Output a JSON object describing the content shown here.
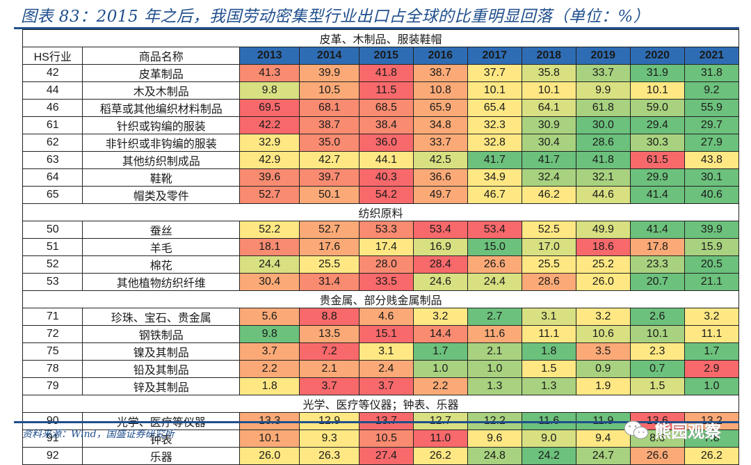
{
  "title": "图表 83：2015 年之后，我国劳动密集型行业出口占全球的比重明显回落（单位：%）",
  "source": "资料来源：Wind，国盛证券研究所",
  "watermark": "熊园观察",
  "header": {
    "hs_label": "HS行业",
    "name_label": "商品名称",
    "years": [
      "2013",
      "2014",
      "2015",
      "2016",
      "2017",
      "2018",
      "2019",
      "2020",
      "2021"
    ]
  },
  "palette": {
    "R": "#F8696B",
    "RO": "#F98B71",
    "O": "#FBAA77",
    "Y": "#FFE884",
    "YG": "#D8E082",
    "LG": "#A8D27F",
    "G": "#6CC17C",
    "header_blue": "#2E6DB4",
    "title_blue": "#1F4E8C"
  },
  "sections": [
    {
      "title": "皮革、木制品、服装鞋帽",
      "rows": [
        {
          "hs": "42",
          "name": "皮革制品",
          "values": [
            "41.3",
            "39.9",
            "41.8",
            "38.7",
            "37.7",
            "35.8",
            "33.7",
            "31.9",
            "31.8"
          ],
          "colors": [
            "RO",
            "O",
            "R",
            "O",
            "Y",
            "YG",
            "LG",
            "G",
            "G"
          ]
        },
        {
          "hs": "44",
          "name": "木及木制品",
          "values": [
            "9.8",
            "10.5",
            "11.5",
            "10.8",
            "10.1",
            "10.1",
            "9.9",
            "10.1",
            "9.2"
          ],
          "colors": [
            "YG",
            "O",
            "R",
            "O",
            "Y",
            "Y",
            "YG",
            "Y",
            "G"
          ]
        },
        {
          "hs": "46",
          "name": "稻草或其他编织材料制品",
          "values": [
            "69.5",
            "68.1",
            "68.5",
            "65.9",
            "65.4",
            "64.1",
            "61.8",
            "59.0",
            "55.9"
          ],
          "colors": [
            "R",
            "RO",
            "RO",
            "O",
            "Y",
            "YG",
            "LG",
            "LG",
            "G"
          ]
        },
        {
          "hs": "61",
          "name": "针织或钩编的服装",
          "values": [
            "42.2",
            "38.7",
            "38.4",
            "34.8",
            "32.3",
            "30.9",
            "30.0",
            "29.4",
            "29.7"
          ],
          "colors": [
            "R",
            "RO",
            "RO",
            "O",
            "Y",
            "LG",
            "G",
            "G",
            "G"
          ]
        },
        {
          "hs": "62",
          "name": "非针织或非钩编的服装",
          "values": [
            "32.9",
            "35.0",
            "36.0",
            "33.7",
            "32.8",
            "30.4",
            "28.6",
            "30.3",
            "27.9"
          ],
          "colors": [
            "Y",
            "RO",
            "R",
            "O",
            "Y",
            "LG",
            "G",
            "LG",
            "G"
          ]
        },
        {
          "hs": "63",
          "name": "其他纺织制成品",
          "values": [
            "42.9",
            "42.7",
            "44.1",
            "42.5",
            "41.7",
            "41.7",
            "41.8",
            "61.5",
            "43.8"
          ],
          "colors": [
            "Y",
            "Y",
            "Y",
            "YG",
            "G",
            "G",
            "G",
            "R",
            "Y"
          ]
        },
        {
          "hs": "64",
          "name": "鞋靴",
          "values": [
            "39.6",
            "39.7",
            "40.3",
            "36.6",
            "34.9",
            "32.4",
            "32.1",
            "29.9",
            "30.1"
          ],
          "colors": [
            "RO",
            "RO",
            "R",
            "O",
            "Y",
            "LG",
            "LG",
            "G",
            "G"
          ]
        },
        {
          "hs": "65",
          "name": "帽类及零件",
          "values": [
            "52.7",
            "50.1",
            "54.2",
            "49.7",
            "46.7",
            "46.2",
            "44.6",
            "41.4",
            "40.6"
          ],
          "colors": [
            "RO",
            "O",
            "R",
            "O",
            "Y",
            "Y",
            "YG",
            "G",
            "G"
          ]
        }
      ]
    },
    {
      "title": "纺织原料",
      "rows": [
        {
          "hs": "50",
          "name": "蚕丝",
          "values": [
            "52.2",
            "52.7",
            "53.3",
            "53.4",
            "53.4",
            "52.5",
            "49.9",
            "41.4",
            "39.9"
          ],
          "colors": [
            "Y",
            "O",
            "RO",
            "R",
            "R",
            "Y",
            "YG",
            "G",
            "G"
          ]
        },
        {
          "hs": "51",
          "name": "羊毛",
          "values": [
            "18.1",
            "17.6",
            "17.4",
            "16.9",
            "15.0",
            "17.0",
            "18.6",
            "17.8",
            "15.9"
          ],
          "colors": [
            "RO",
            "O",
            "Y",
            "YG",
            "G",
            "YG",
            "R",
            "O",
            "LG"
          ]
        },
        {
          "hs": "52",
          "name": "棉花",
          "values": [
            "24.4",
            "25.5",
            "28.0",
            "28.4",
            "26.6",
            "25.5",
            "25.2",
            "23.3",
            "20.5"
          ],
          "colors": [
            "YG",
            "Y",
            "RO",
            "R",
            "O",
            "Y",
            "Y",
            "LG",
            "G"
          ]
        },
        {
          "hs": "53",
          "name": "其他植物纺织纤维",
          "values": [
            "30.4",
            "31.4",
            "33.5",
            "24.6",
            "24.4",
            "28.6",
            "26.0",
            "20.7",
            "21.1"
          ],
          "colors": [
            "O",
            "RO",
            "R",
            "YG",
            "YG",
            "O",
            "Y",
            "G",
            "G"
          ]
        }
      ]
    },
    {
      "title": "贵金属、部分贱金属制品",
      "rows": [
        {
          "hs": "71",
          "name": "珍珠、宝石、贵金属",
          "values": [
            "5.6",
            "8.8",
            "4.6",
            "3.2",
            "2.7",
            "3.1",
            "3.2",
            "2.6",
            "3.2"
          ],
          "colors": [
            "O",
            "R",
            "O",
            "Y",
            "G",
            "YG",
            "Y",
            "G",
            "Y"
          ]
        },
        {
          "hs": "72",
          "name": "钢铁制品",
          "values": [
            "9.8",
            "13.5",
            "15.1",
            "14.4",
            "11.6",
            "11.1",
            "10.6",
            "10.1",
            "11.1"
          ],
          "colors": [
            "G",
            "O",
            "R",
            "RO",
            "O",
            "Y",
            "YG",
            "LG",
            "Y"
          ]
        },
        {
          "hs": "75",
          "name": "镍及其制品",
          "values": [
            "3.7",
            "7.2",
            "3.1",
            "1.7",
            "2.1",
            "1.8",
            "3.5",
            "2.3",
            "1.7"
          ],
          "colors": [
            "O",
            "R",
            "Y",
            "G",
            "LG",
            "G",
            "O",
            "Y",
            "G"
          ]
        },
        {
          "hs": "78",
          "name": "铅及其制品",
          "values": [
            "2.2",
            "2.1",
            "2.4",
            "1.0",
            "1.0",
            "1.5",
            "0.9",
            "0.7",
            "2.9"
          ],
          "colors": [
            "O",
            "O",
            "O",
            "LG",
            "LG",
            "Y",
            "LG",
            "G",
            "R"
          ]
        },
        {
          "hs": "79",
          "name": "锌及其制品",
          "values": [
            "1.8",
            "3.7",
            "3.7",
            "2.2",
            "1.3",
            "1.3",
            "1.9",
            "1.5",
            "1.0"
          ],
          "colors": [
            "Y",
            "R",
            "R",
            "O",
            "LG",
            "LG",
            "Y",
            "YG",
            "G"
          ]
        }
      ]
    },
    {
      "title": "光学、医疗等仪器；钟表、乐器",
      "rows": [
        {
          "hs": "90",
          "name": "光学、医疗等仪器",
          "values": [
            "13.3",
            "12.9",
            "13.7",
            "12.7",
            "12.2",
            "11.6",
            "11.9",
            "13.6",
            "13.2"
          ],
          "colors": [
            "O",
            "Y",
            "R",
            "YG",
            "LG",
            "G",
            "G",
            "R",
            "O"
          ]
        },
        {
          "hs": "91",
          "name": "钟表",
          "values": [
            "10.1",
            "9.3",
            "10.5",
            "11.0",
            "9.6",
            "9.0",
            "9.4",
            "8.6",
            "7.8"
          ],
          "colors": [
            "O",
            "Y",
            "RO",
            "R",
            "Y",
            "YG",
            "Y",
            "LG",
            "G"
          ]
        },
        {
          "hs": "92",
          "name": "乐器",
          "values": [
            "26.0",
            "26.3",
            "27.4",
            "26.2",
            "24.8",
            "24.2",
            "24.7",
            "26.6",
            "26.2"
          ],
          "colors": [
            "Y",
            "Y",
            "R",
            "Y",
            "LG",
            "G",
            "LG",
            "O",
            "Y"
          ]
        }
      ]
    }
  ]
}
